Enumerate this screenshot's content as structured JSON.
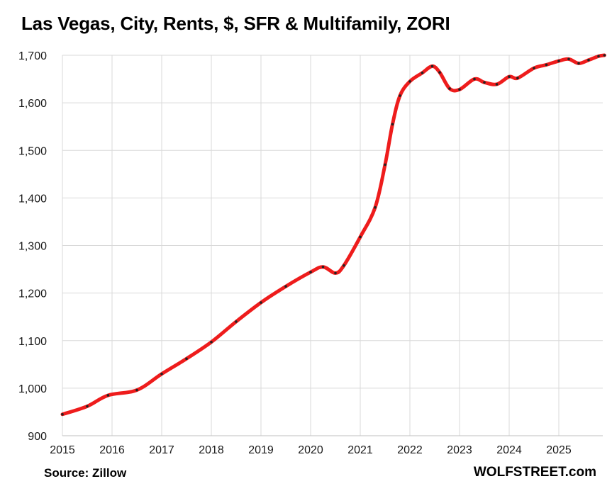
{
  "title": "Las Vegas, City, Rents, $, SFR & Multifamily, ZORI",
  "source": "Source: Zillow",
  "brand": "WOLFSTREET.com",
  "colors": {
    "line": "#ee1c1c",
    "marker": "#222222",
    "grid": "#d9d9d9"
  },
  "chart_data": {
    "type": "line",
    "title": "Las Vegas, City, Rents, $, SFR & Multifamily, ZORI",
    "xlabel": "",
    "ylabel": "",
    "ylim": [
      900,
      1700
    ],
    "xlim": [
      2015,
      2025.92
    ],
    "grid": "vertical and horizontal",
    "legend": "none",
    "yticks": [
      900,
      1000,
      1100,
      1200,
      1300,
      1400,
      1500,
      1600,
      1700
    ],
    "ytick_labels": [
      "900",
      "1,000",
      "1,100",
      "1,200",
      "1,300",
      "1,400",
      "1,500",
      "1,600",
      "1,700"
    ],
    "xticks": [
      2015,
      2016,
      2017,
      2018,
      2019,
      2020,
      2021,
      2022,
      2023,
      2024,
      2025
    ],
    "xtick_labels": [
      "2015",
      "2016",
      "2017",
      "2018",
      "2019",
      "2020",
      "2021",
      "2022",
      "2023",
      "2024",
      "2025"
    ],
    "series": [
      {
        "points": [
          [
            2015.0,
            945
          ],
          [
            2015.5,
            962
          ],
          [
            2015.92,
            985
          ],
          [
            2016.5,
            996
          ],
          [
            2017.0,
            1030
          ],
          [
            2017.5,
            1062
          ],
          [
            2018.0,
            1097
          ],
          [
            2018.5,
            1140
          ],
          [
            2019.0,
            1180
          ],
          [
            2019.5,
            1214
          ],
          [
            2020.0,
            1244
          ],
          [
            2020.25,
            1255
          ],
          [
            2020.5,
            1242
          ],
          [
            2020.67,
            1258
          ],
          [
            2021.0,
            1318
          ],
          [
            2021.3,
            1380
          ],
          [
            2021.5,
            1470
          ],
          [
            2021.65,
            1555
          ],
          [
            2021.8,
            1615
          ],
          [
            2022.0,
            1645
          ],
          [
            2022.25,
            1663
          ],
          [
            2022.45,
            1677
          ],
          [
            2022.6,
            1664
          ],
          [
            2022.8,
            1630
          ],
          [
            2023.0,
            1628
          ],
          [
            2023.3,
            1650
          ],
          [
            2023.5,
            1643
          ],
          [
            2023.75,
            1639
          ],
          [
            2024.0,
            1655
          ],
          [
            2024.17,
            1652
          ],
          [
            2024.5,
            1673
          ],
          [
            2024.75,
            1680
          ],
          [
            2025.0,
            1688
          ],
          [
            2025.2,
            1692
          ],
          [
            2025.4,
            1683
          ],
          [
            2025.6,
            1690
          ],
          [
            2025.8,
            1698
          ],
          [
            2025.92,
            1700
          ]
        ]
      }
    ]
  }
}
